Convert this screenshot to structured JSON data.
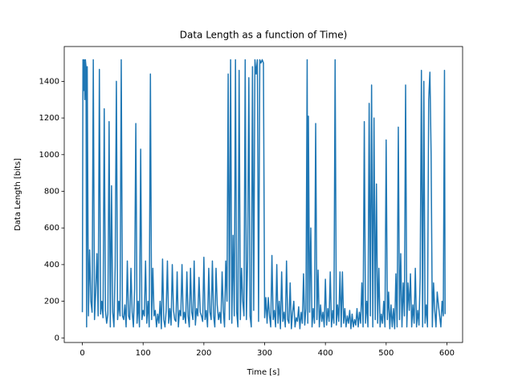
{
  "chart_data": {
    "type": "line",
    "title": "Data Length as a function of Time)",
    "x_label": "Time [s]",
    "y_label": "Data Length [bits]",
    "xlim": [
      -29.8,
      625.8
    ],
    "ylim": [
      -25,
      1590
    ],
    "xticks": [
      0,
      100,
      200,
      300,
      400,
      500,
      600
    ],
    "yticks": [
      0,
      200,
      400,
      600,
      800,
      1000,
      1200,
      1400
    ],
    "grid": false,
    "series": [
      {
        "color": "#1f77b4",
        "x": [
          0,
          1,
          2,
          3,
          4,
          5,
          6,
          7,
          8,
          10,
          12,
          14,
          16,
          18,
          20,
          22,
          24,
          26,
          28,
          30,
          32,
          34,
          36,
          38,
          40,
          42,
          44,
          46,
          48,
          50,
          52,
          54,
          56,
          58,
          60,
          62,
          64,
          66,
          68,
          70,
          72,
          74,
          76,
          78,
          80,
          82,
          84,
          86,
          88,
          90,
          92,
          94,
          96,
          98,
          100,
          102,
          104,
          106,
          108,
          110,
          112,
          114,
          116,
          118,
          120,
          122,
          124,
          126,
          128,
          130,
          132,
          134,
          136,
          138,
          140,
          142,
          144,
          146,
          148,
          150,
          152,
          154,
          156,
          158,
          160,
          162,
          164,
          166,
          168,
          170,
          172,
          174,
          176,
          178,
          180,
          182,
          184,
          186,
          188,
          190,
          192,
          194,
          196,
          198,
          200,
          202,
          204,
          206,
          208,
          210,
          212,
          214,
          216,
          218,
          220,
          222,
          224,
          226,
          228,
          230,
          232,
          234,
          236,
          238,
          240,
          242,
          244,
          246,
          248,
          250,
          252,
          254,
          256,
          258,
          260,
          262,
          264,
          266,
          268,
          270,
          272,
          274,
          276,
          278,
          280,
          282,
          284,
          286,
          288,
          290,
          292,
          294,
          296,
          298,
          300,
          302,
          304,
          306,
          308,
          310,
          312,
          314,
          316,
          318,
          320,
          322,
          324,
          326,
          328,
          330,
          332,
          334,
          336,
          338,
          340,
          342,
          344,
          346,
          348,
          350,
          352,
          354,
          356,
          358,
          360,
          362,
          364,
          366,
          368,
          370,
          371,
          372,
          374,
          376,
          378,
          380,
          382,
          384,
          386,
          388,
          390,
          392,
          394,
          396,
          398,
          400,
          402,
          404,
          406,
          408,
          410,
          412,
          414,
          416,
          418,
          420,
          422,
          424,
          426,
          428,
          430,
          432,
          434,
          436,
          438,
          440,
          442,
          444,
          446,
          448,
          450,
          452,
          454,
          456,
          458,
          460,
          462,
          464,
          466,
          468,
          470,
          472,
          474,
          476,
          478,
          480,
          482,
          484,
          486,
          488,
          490,
          492,
          494,
          496,
          498,
          500,
          502,
          504,
          506,
          508,
          510,
          512,
          514,
          516,
          518,
          520,
          522,
          524,
          526,
          528,
          530,
          532,
          534,
          536,
          538,
          540,
          542,
          544,
          546,
          548,
          550,
          552,
          554,
          556,
          558,
          560,
          562,
          564,
          566,
          568,
          570,
          572,
          574,
          576,
          578,
          580,
          582,
          584,
          586,
          588,
          590,
          592,
          594,
          596,
          597
        ],
        "values": [
          140,
          1518,
          1350,
          1518,
          1300,
          1518,
          1480,
          60,
          1480,
          120,
          480,
          200,
          140,
          1518,
          100,
          250,
          460,
          120,
          1465,
          130,
          200,
          110,
          1250,
          150,
          80,
          130,
          1180,
          60,
          830,
          140,
          60,
          390,
          1400,
          100,
          200,
          120,
          1518,
          120,
          100,
          180,
          60,
          420,
          120,
          100,
          380,
          140,
          60,
          270,
          1170,
          80,
          200,
          60,
          1030,
          100,
          150,
          120,
          420,
          80,
          200,
          60,
          1440,
          100,
          380,
          120,
          150,
          60,
          130,
          80,
          200,
          50,
          430,
          100,
          60,
          150,
          420,
          80,
          160,
          70,
          400,
          150,
          100,
          90,
          360,
          60,
          150,
          120,
          400,
          100,
          140,
          80,
          360,
          120,
          60,
          380,
          140,
          100,
          420,
          70,
          160,
          120,
          330,
          140,
          120,
          90,
          440,
          100,
          150,
          60,
          380,
          140,
          100,
          420,
          120,
          60,
          380,
          180,
          100,
          140,
          80,
          360,
          150,
          60,
          420,
          200,
          1440,
          100,
          1518,
          80,
          560,
          120,
          1518,
          140,
          60,
          1460,
          100,
          380,
          200,
          120,
          1518,
          100,
          420,
          1420,
          120,
          60,
          1480,
          150,
          1518,
          1440,
          1518,
          90,
          1518,
          1500,
          1518,
          1500,
          110,
          220,
          80,
          220,
          120,
          60,
          450,
          100,
          150,
          60,
          400,
          80,
          200,
          50,
          360,
          90,
          140,
          60,
          420,
          100,
          80,
          300,
          50,
          140,
          200,
          60,
          110,
          90,
          170,
          50,
          140,
          80,
          350,
          70,
          160,
          1518,
          80,
          1210,
          140,
          600,
          60,
          160,
          80,
          1170,
          100,
          370,
          60,
          180,
          90,
          140,
          60,
          320,
          70,
          160,
          90,
          360,
          60,
          150,
          80,
          1518,
          70,
          180,
          90,
          360,
          60,
          360,
          80,
          160,
          60,
          120,
          80,
          150,
          50,
          130,
          60,
          100,
          70,
          160,
          60,
          140,
          80,
          300,
          60,
          1180,
          80,
          200,
          60,
          1280,
          120,
          1380,
          60,
          1200,
          100,
          840,
          80,
          380,
          60,
          130,
          80,
          200,
          60,
          1080,
          100,
          250,
          50,
          180,
          60,
          160,
          50,
          350,
          60,
          1150,
          100,
          460,
          60,
          300,
          120,
          1380,
          60,
          300,
          150,
          350,
          60,
          180,
          80,
          380,
          60,
          150,
          70,
          330,
          1460,
          60,
          1400,
          80,
          180,
          60,
          1300,
          1450,
          1000,
          60,
          300,
          150,
          60,
          250,
          180,
          120,
          60,
          200,
          120,
          1460,
          130
        ]
      }
    ]
  }
}
